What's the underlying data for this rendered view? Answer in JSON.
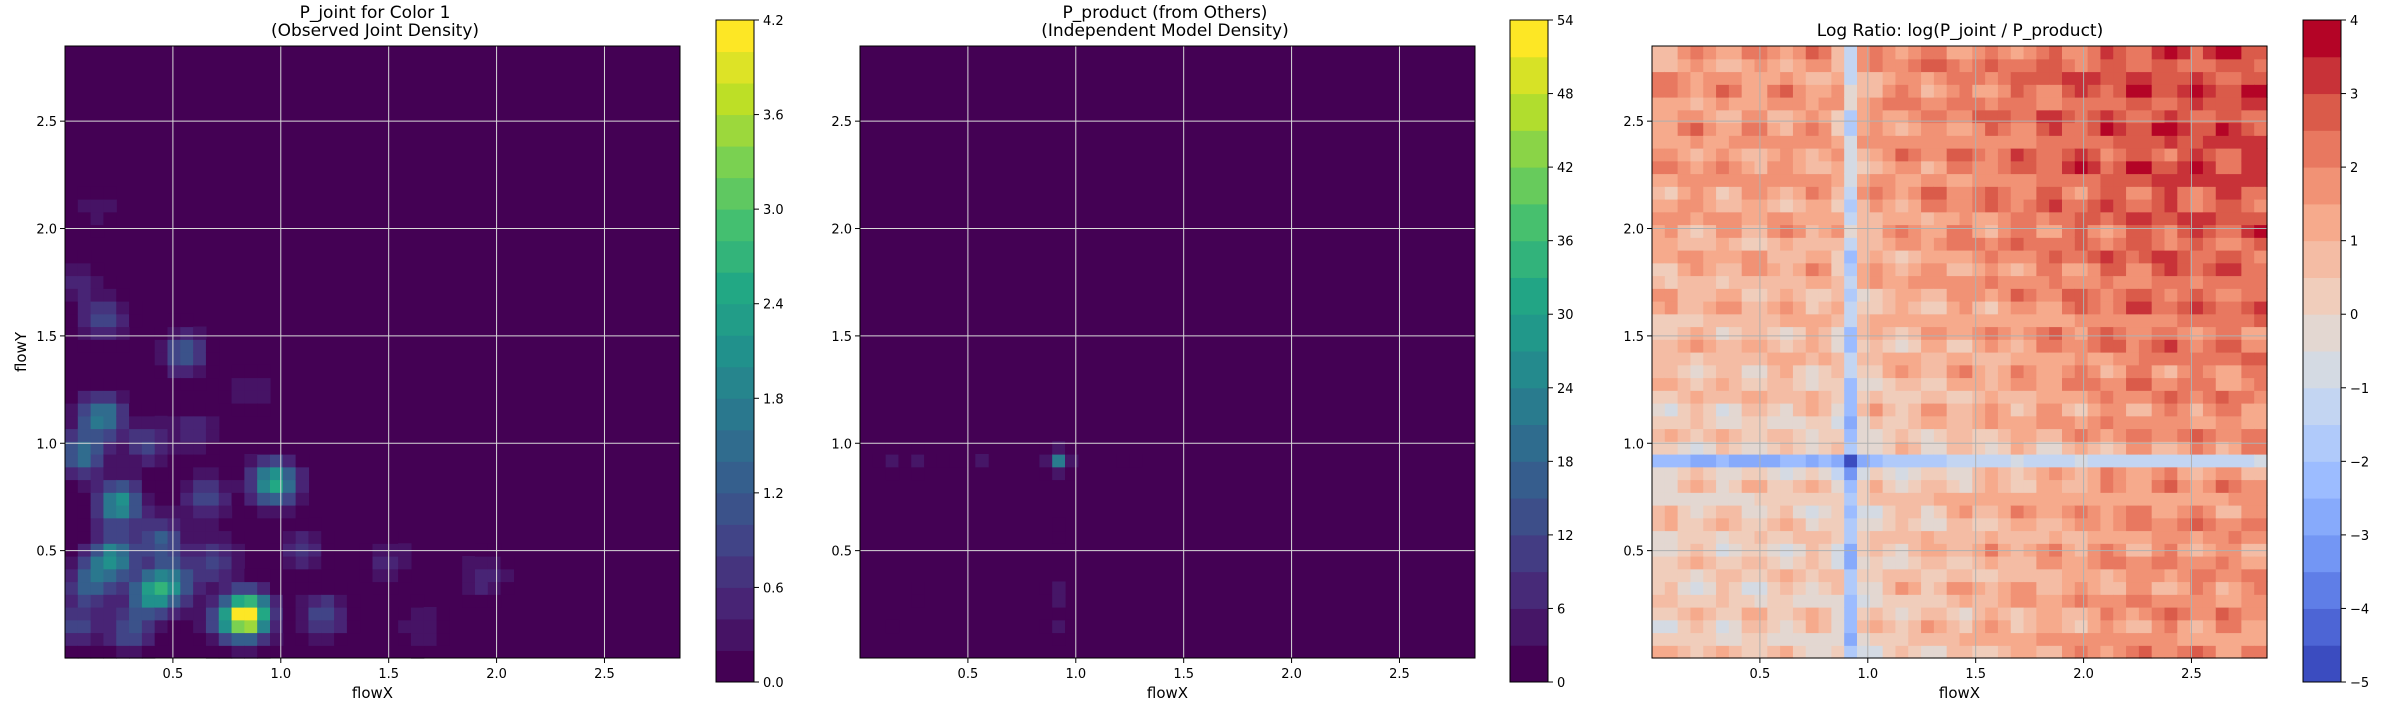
{
  "chart_data": [
    {
      "type": "heatmap",
      "title_line1": "P_joint for Color 1",
      "title_line2": "(Observed Joint Density)",
      "xlabel": "flowX",
      "ylabel": "flowY",
      "xlim": [
        0.0,
        2.85
      ],
      "ylim": [
        0.0,
        2.85
      ],
      "xticks": [
        0.5,
        1.0,
        1.5,
        2.0,
        2.5
      ],
      "xtick_labels": [
        "0.5",
        "1.0",
        "1.5",
        "2.0",
        "2.5"
      ],
      "yticks": [
        0.5,
        1.0,
        1.5,
        2.0,
        2.5
      ],
      "ytick_labels": [
        "0.5",
        "1.0",
        "1.5",
        "2.0",
        "2.5"
      ],
      "grid": true,
      "colormap": "viridis",
      "colorbar": {
        "min": 0.0,
        "max": 4.2,
        "ticks": [
          0.0,
          0.6,
          1.2,
          1.8,
          2.4,
          3.0,
          3.6,
          4.2
        ],
        "tick_labels": [
          "0.0",
          "0.6",
          "1.2",
          "1.8",
          "2.4",
          "3.0",
          "3.6",
          "4.2"
        ],
        "levels": 21
      },
      "density_peaks": [
        {
          "x": 0.85,
          "y": 0.2,
          "value": 4.2
        },
        {
          "x": 0.97,
          "y": 0.82,
          "value": 2.6
        },
        {
          "x": 0.25,
          "y": 0.72,
          "value": 2.2
        },
        {
          "x": 0.22,
          "y": 0.47,
          "value": 2.0
        },
        {
          "x": 0.4,
          "y": 0.3,
          "value": 2.1
        },
        {
          "x": 0.17,
          "y": 1.13,
          "value": 1.8
        },
        {
          "x": 0.08,
          "y": 0.95,
          "value": 1.6
        },
        {
          "x": 0.5,
          "y": 0.35,
          "value": 1.5
        },
        {
          "x": 0.12,
          "y": 0.35,
          "value": 1.4
        },
        {
          "x": 0.55,
          "y": 1.42,
          "value": 1.2
        },
        {
          "x": 0.18,
          "y": 1.58,
          "value": 1.0
        },
        {
          "x": 0.65,
          "y": 0.75,
          "value": 1.0
        },
        {
          "x": 0.3,
          "y": 0.13,
          "value": 1.1
        },
        {
          "x": 1.2,
          "y": 0.2,
          "value": 1.0
        },
        {
          "x": 0.75,
          "y": 0.18,
          "value": 1.2
        },
        {
          "x": 0.05,
          "y": 0.15,
          "value": 0.9
        },
        {
          "x": 0.38,
          "y": 1.0,
          "value": 0.9
        },
        {
          "x": 1.1,
          "y": 0.5,
          "value": 0.7
        },
        {
          "x": 1.5,
          "y": 0.45,
          "value": 0.5
        },
        {
          "x": 1.95,
          "y": 0.38,
          "value": 0.6
        },
        {
          "x": 1.65,
          "y": 0.15,
          "value": 0.4
        },
        {
          "x": 0.6,
          "y": 1.05,
          "value": 0.6
        },
        {
          "x": 0.85,
          "y": 1.25,
          "value": 0.4
        },
        {
          "x": 0.15,
          "y": 2.1,
          "value": 0.3
        },
        {
          "x": 0.05,
          "y": 1.75,
          "value": 0.5
        },
        {
          "x": 0.45,
          "y": 0.55,
          "value": 1.3
        },
        {
          "x": 0.7,
          "y": 0.45,
          "value": 0.9
        }
      ]
    },
    {
      "type": "heatmap",
      "title_line1": "P_product (from Others)",
      "title_line2": "(Independent Model Density)",
      "xlabel": "flowX",
      "ylabel": "",
      "xlim": [
        0.0,
        2.85
      ],
      "ylim": [
        0.0,
        2.85
      ],
      "xticks": [
        0.5,
        1.0,
        1.5,
        2.0,
        2.5
      ],
      "xtick_labels": [
        "0.5",
        "1.0",
        "1.5",
        "2.0",
        "2.5"
      ],
      "yticks": [
        0.5,
        1.0,
        1.5,
        2.0,
        2.5
      ],
      "ytick_labels": [
        "0.5",
        "1.0",
        "1.5",
        "2.0",
        "2.5"
      ],
      "grid": true,
      "colormap": "viridis",
      "colorbar": {
        "min": 0,
        "max": 54,
        "ticks": [
          0,
          6,
          12,
          18,
          24,
          30,
          36,
          42,
          48,
          54
        ],
        "tick_labels": [
          "0",
          "6",
          "12",
          "18",
          "24",
          "30",
          "36",
          "42",
          "48",
          "54"
        ],
        "levels": 18
      },
      "density_peaks": [
        {
          "x": 0.92,
          "y": 0.92,
          "value": 22
        },
        {
          "x": 0.92,
          "y": 0.3,
          "value": 6
        },
        {
          "x": 0.92,
          "y": 0.15,
          "value": 5
        },
        {
          "x": 0.15,
          "y": 0.92,
          "value": 6
        },
        {
          "x": 0.28,
          "y": 0.92,
          "value": 5
        },
        {
          "x": 0.55,
          "y": 0.92,
          "value": 4
        },
        {
          "x": 0.42,
          "y": 0.92,
          "value": 3
        },
        {
          "x": 0.92,
          "y": 0.6,
          "value": 3
        },
        {
          "x": 1.25,
          "y": 0.92,
          "value": 2
        },
        {
          "x": 0.15,
          "y": 0.15,
          "value": 2
        },
        {
          "x": 0.28,
          "y": 0.3,
          "value": 2
        }
      ]
    },
    {
      "type": "heatmap",
      "title_line1": "Log Ratio: log(P_joint / P_product)",
      "title_line2": "",
      "xlabel": "flowX",
      "ylabel": "",
      "xlim": [
        0.0,
        2.85
      ],
      "ylim": [
        0.0,
        2.85
      ],
      "xticks": [
        0.5,
        1.0,
        1.5,
        2.0,
        2.5
      ],
      "xtick_labels": [
        "0.5",
        "1.0",
        "1.5",
        "2.0",
        "2.5"
      ],
      "yticks": [
        0.5,
        1.0,
        1.5,
        2.0,
        2.5
      ],
      "ytick_labels": [
        "0.5",
        "1.0",
        "1.5",
        "2.0",
        "2.5"
      ],
      "grid": true,
      "colormap": "coolwarm",
      "colorbar": {
        "min": -5,
        "max": 4,
        "ticks": [
          -5,
          -4,
          -3,
          -2,
          -1,
          0,
          1,
          2,
          3,
          4
        ],
        "tick_labels": [
          "−5",
          "−4",
          "−3",
          "−2",
          "−1",
          "0",
          "1",
          "2",
          "3",
          "4"
        ],
        "levels": 18
      },
      "ratio_features": {
        "negative_lines": [
          {
            "axis": "x",
            "at": 0.92,
            "value": -2.5
          },
          {
            "axis": "y",
            "at": 0.92,
            "value": -2.5
          }
        ],
        "positive_region": {
          "x_from": 1.5,
          "y_from": 1.5,
          "max": 3.5
        },
        "background": 0.3
      }
    }
  ]
}
